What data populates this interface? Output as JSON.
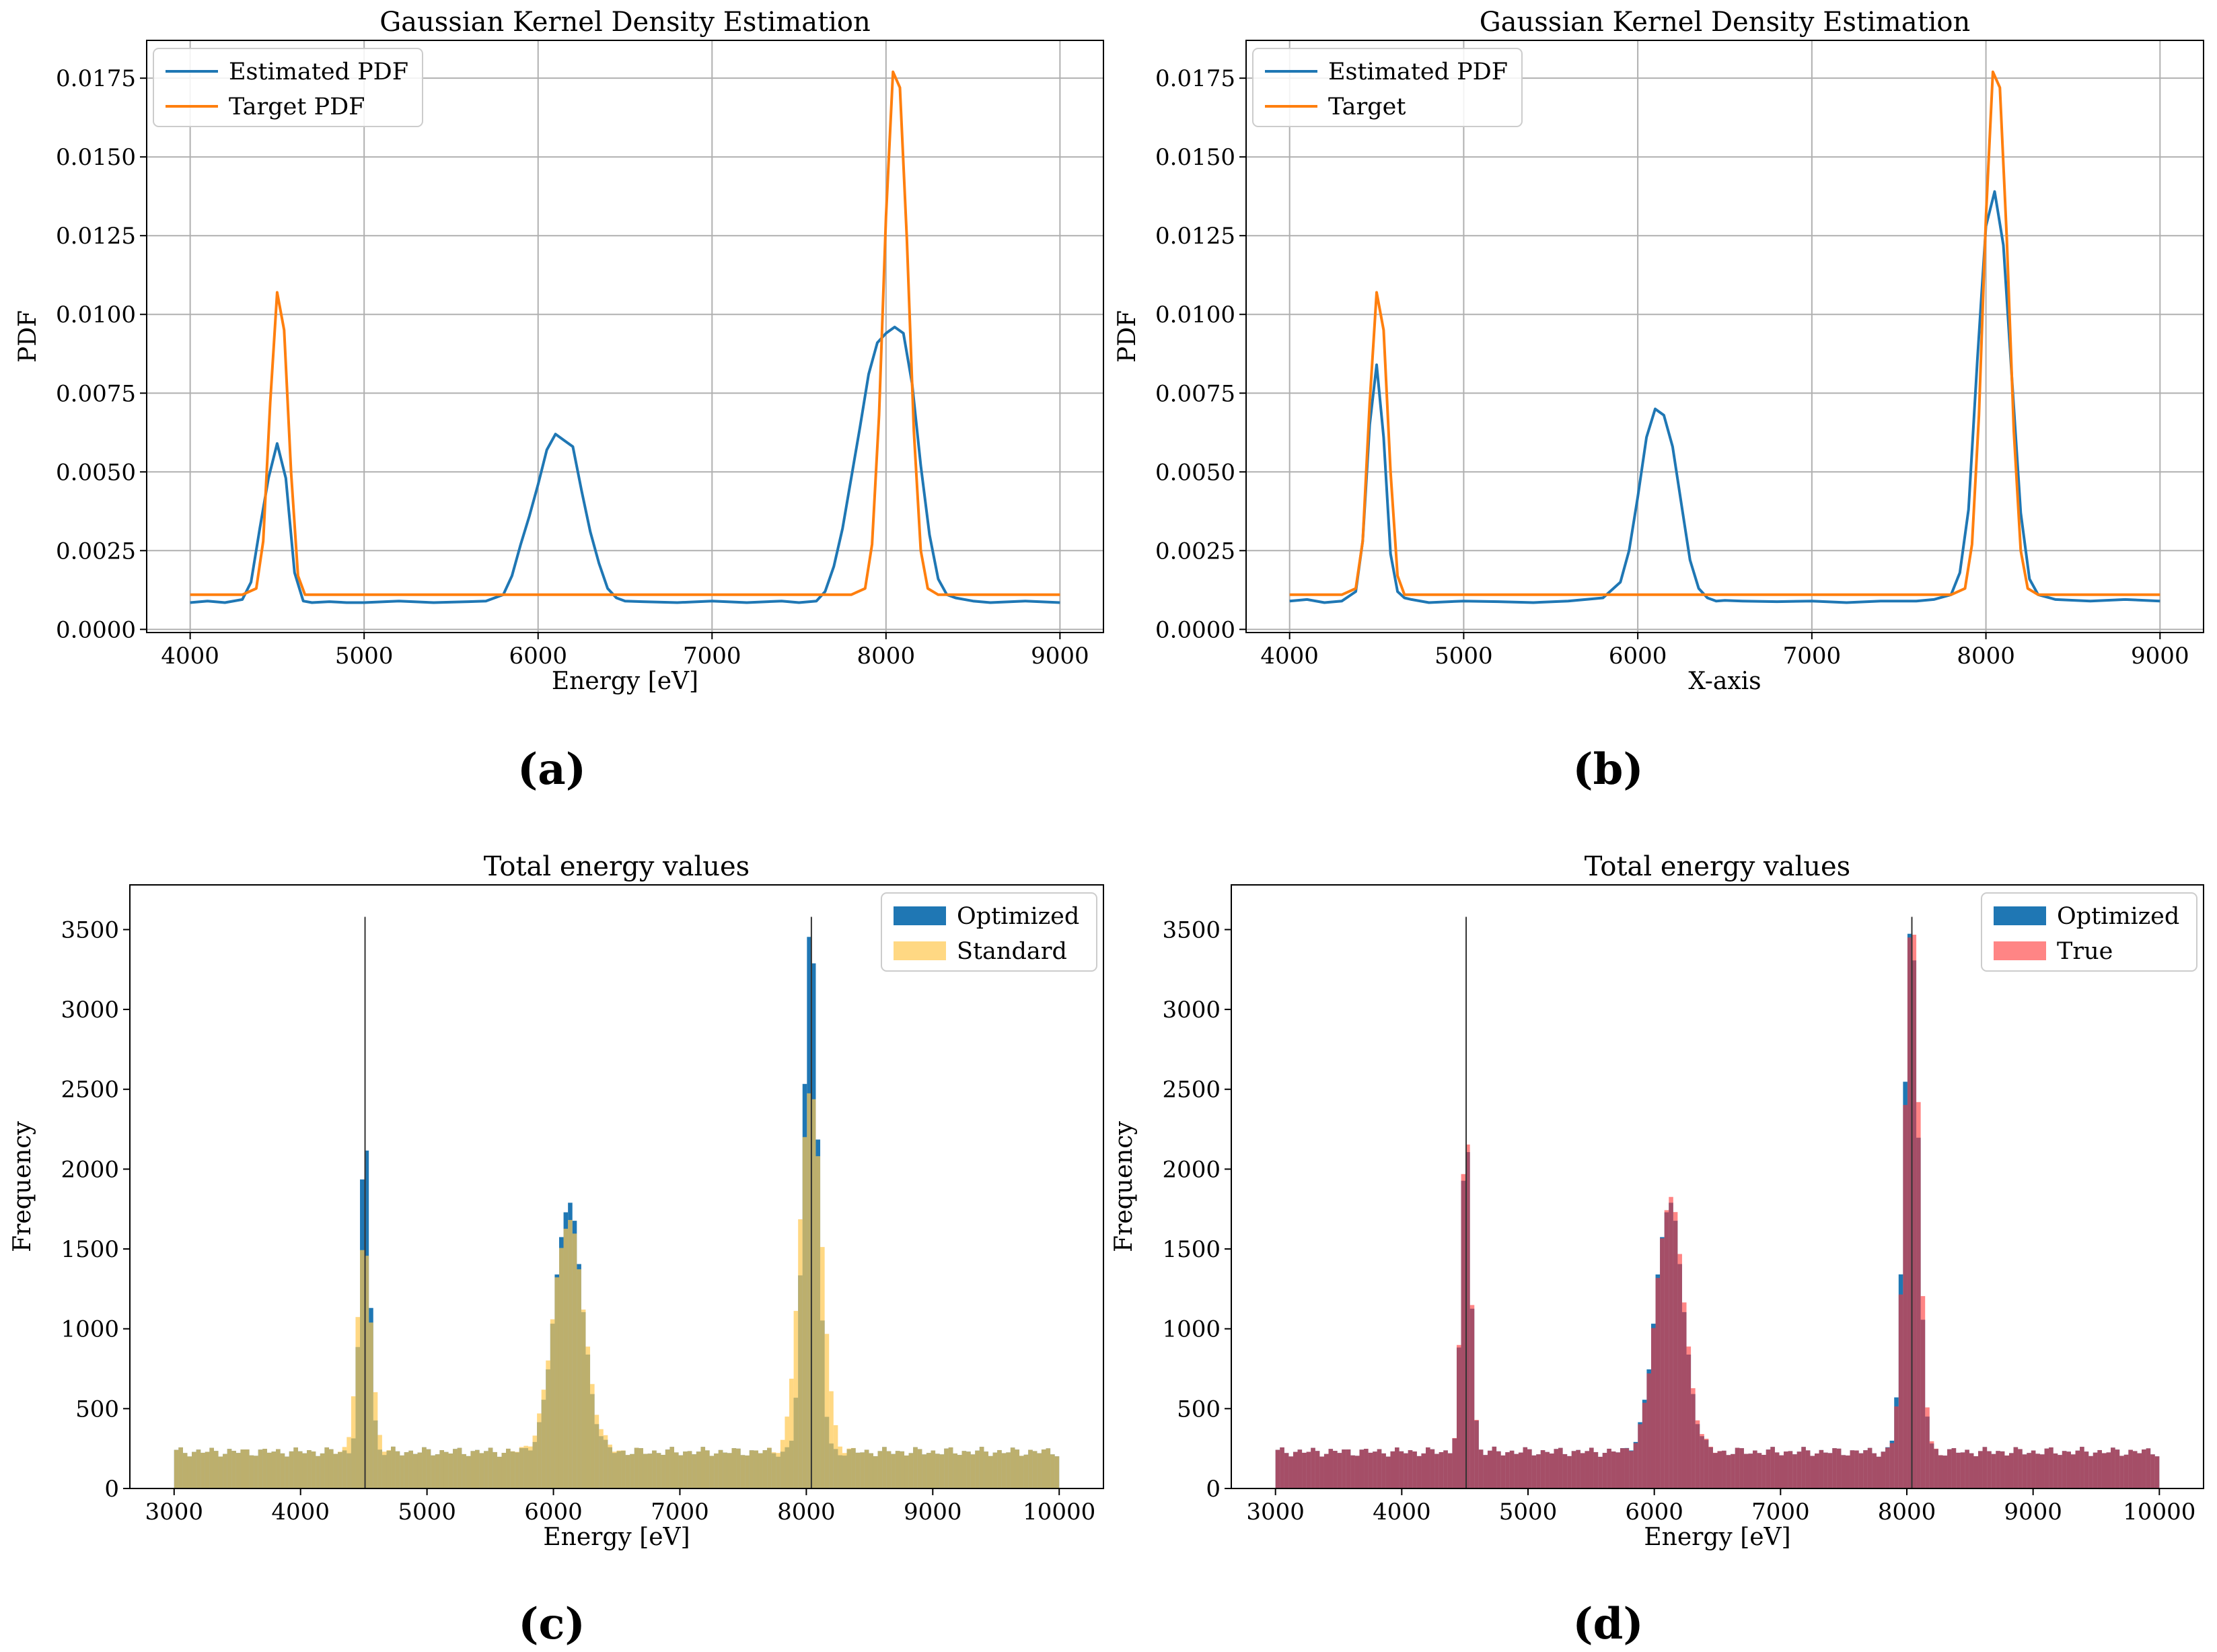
{
  "captions": [
    "(a)",
    "(b)",
    "(c)",
    "(d)"
  ],
  "colors": {
    "estimated": "#1f77b4",
    "target": "#ff7f0e",
    "optimized": "#1f77b4",
    "standard": "#ffc74f",
    "standard_alpha": 0.7,
    "true": "#ff3333",
    "true_alpha": 0.6,
    "vline": "#333333"
  },
  "chart_data": [
    {
      "type": "line",
      "title": "Gaussian Kernel Density Estimation",
      "xlabel": "Energy [eV]",
      "ylabel": "PDF",
      "xlim": [
        3750,
        9250
      ],
      "ylim": [
        -0.0001,
        0.0187
      ],
      "xticks": [
        4000,
        5000,
        6000,
        7000,
        8000,
        9000
      ],
      "xtick_labels": [
        "4000",
        "5000",
        "6000",
        "7000",
        "8000",
        "9000"
      ],
      "yticks": [
        0.0,
        0.0025,
        0.005,
        0.0075,
        0.01,
        0.0125,
        0.015,
        0.0175
      ],
      "ytick_labels": [
        "0.0000",
        "0.0025",
        "0.0050",
        "0.0075",
        "0.0100",
        "0.0125",
        "0.0150",
        "0.0175"
      ],
      "grid": true,
      "legend_position": "upper-left",
      "series": [
        {
          "name": "Estimated PDF",
          "color_key": "estimated",
          "x": [
            4000,
            4100,
            4200,
            4300,
            4350,
            4400,
            4450,
            4500,
            4550,
            4600,
            4650,
            4700,
            4800,
            4900,
            5000,
            5200,
            5400,
            5600,
            5700,
            5800,
            5850,
            5900,
            5950,
            6000,
            6050,
            6100,
            6150,
            6200,
            6250,
            6300,
            6350,
            6400,
            6450,
            6500,
            6600,
            6800,
            7000,
            7200,
            7400,
            7500,
            7600,
            7650,
            7700,
            7750,
            7800,
            7850,
            7900,
            7950,
            8000,
            8050,
            8100,
            8150,
            8200,
            8250,
            8300,
            8350,
            8400,
            8500,
            8600,
            8800,
            9000
          ],
          "y": [
            0.00085,
            0.0009,
            0.00085,
            0.00095,
            0.0015,
            0.0032,
            0.0048,
            0.0059,
            0.0048,
            0.0018,
            0.0009,
            0.00085,
            0.00088,
            0.00085,
            0.00085,
            0.0009,
            0.00085,
            0.00088,
            0.0009,
            0.0011,
            0.0017,
            0.0027,
            0.0036,
            0.0046,
            0.0057,
            0.0062,
            0.006,
            0.0058,
            0.0044,
            0.0031,
            0.0021,
            0.0013,
            0.001,
            0.0009,
            0.00088,
            0.00085,
            0.0009,
            0.00085,
            0.0009,
            0.00085,
            0.0009,
            0.0012,
            0.002,
            0.0032,
            0.0048,
            0.0064,
            0.0081,
            0.0091,
            0.0094,
            0.0096,
            0.0094,
            0.0078,
            0.0052,
            0.003,
            0.0016,
            0.0011,
            0.001,
            0.0009,
            0.00085,
            0.0009,
            0.00085
          ]
        },
        {
          "name": "Target PDF",
          "color_key": "target",
          "x": [
            4000,
            4300,
            4380,
            4420,
            4460,
            4500,
            4540,
            4580,
            4620,
            4660,
            4700,
            5000,
            6000,
            7000,
            7800,
            7880,
            7920,
            7960,
            8000,
            8040,
            8080,
            8120,
            8160,
            8200,
            8240,
            8300,
            8500,
            9000
          ],
          "y": [
            0.0011,
            0.0011,
            0.0013,
            0.0028,
            0.0072,
            0.0107,
            0.0095,
            0.005,
            0.0017,
            0.0011,
            0.0011,
            0.0011,
            0.0011,
            0.0011,
            0.0011,
            0.0013,
            0.0027,
            0.0068,
            0.0131,
            0.0177,
            0.0172,
            0.0124,
            0.0063,
            0.0025,
            0.0013,
            0.0011,
            0.0011,
            0.0011
          ]
        }
      ]
    },
    {
      "type": "line",
      "title": "Gaussian Kernel Density Estimation",
      "xlabel": "X-axis",
      "ylabel": "PDF",
      "xlim": [
        3750,
        9250
      ],
      "ylim": [
        -0.0001,
        0.0187
      ],
      "xticks": [
        4000,
        5000,
        6000,
        7000,
        8000,
        9000
      ],
      "xtick_labels": [
        "4000",
        "5000",
        "6000",
        "7000",
        "8000",
        "9000"
      ],
      "yticks": [
        0.0,
        0.0025,
        0.005,
        0.0075,
        0.01,
        0.0125,
        0.015,
        0.0175
      ],
      "ytick_labels": [
        "0.0000",
        "0.0025",
        "0.0050",
        "0.0075",
        "0.0100",
        "0.0125",
        "0.0150",
        "0.0175"
      ],
      "grid": true,
      "legend_position": "upper-left",
      "series": [
        {
          "name": "Estimated PDF",
          "color_key": "estimated",
          "x": [
            4000,
            4100,
            4200,
            4300,
            4380,
            4420,
            4460,
            4500,
            4540,
            4580,
            4620,
            4660,
            4700,
            4800,
            5000,
            5200,
            5400,
            5600,
            5800,
            5900,
            5950,
            6000,
            6050,
            6100,
            6150,
            6200,
            6250,
            6300,
            6350,
            6400,
            6450,
            6500,
            6600,
            6800,
            7000,
            7200,
            7400,
            7600,
            7700,
            7800,
            7850,
            7900,
            7950,
            8000,
            8050,
            8100,
            8150,
            8200,
            8250,
            8300,
            8400,
            8600,
            8800,
            9000
          ],
          "y": [
            0.0009,
            0.00095,
            0.00085,
            0.0009,
            0.0012,
            0.0028,
            0.0065,
            0.0084,
            0.0061,
            0.0024,
            0.0012,
            0.001,
            0.00095,
            0.00085,
            0.0009,
            0.00088,
            0.00085,
            0.0009,
            0.001,
            0.0015,
            0.0025,
            0.0042,
            0.0061,
            0.007,
            0.0068,
            0.0058,
            0.004,
            0.0022,
            0.0013,
            0.001,
            0.0009,
            0.00092,
            0.0009,
            0.00088,
            0.0009,
            0.00085,
            0.0009,
            0.0009,
            0.00095,
            0.0011,
            0.0018,
            0.0038,
            0.0085,
            0.0128,
            0.0139,
            0.0122,
            0.0079,
            0.0037,
            0.0016,
            0.0011,
            0.00095,
            0.0009,
            0.00095,
            0.0009
          ]
        },
        {
          "name": "Target",
          "color_key": "target",
          "x": [
            4000,
            4300,
            4380,
            4420,
            4460,
            4500,
            4540,
            4580,
            4620,
            4660,
            4700,
            5000,
            6000,
            7000,
            7800,
            7880,
            7920,
            7960,
            8000,
            8040,
            8080,
            8120,
            8160,
            8200,
            8240,
            8300,
            8500,
            9000
          ],
          "y": [
            0.0011,
            0.0011,
            0.0013,
            0.0028,
            0.0072,
            0.0107,
            0.0095,
            0.005,
            0.0017,
            0.0011,
            0.0011,
            0.0011,
            0.0011,
            0.0011,
            0.0011,
            0.0013,
            0.0027,
            0.0068,
            0.0131,
            0.0177,
            0.0172,
            0.0124,
            0.0063,
            0.0025,
            0.0013,
            0.0011,
            0.0011,
            0.0011
          ]
        }
      ]
    },
    {
      "type": "histogram",
      "title": "Total energy values",
      "xlabel": "Energy [eV]",
      "ylabel": "Frequency",
      "xlim": [
        2650,
        10350
      ],
      "ylim": [
        0,
        3780
      ],
      "xticks": [
        3000,
        4000,
        5000,
        6000,
        7000,
        8000,
        9000,
        10000
      ],
      "xtick_labels": [
        "3000",
        "4000",
        "5000",
        "6000",
        "7000",
        "8000",
        "9000",
        "10000"
      ],
      "yticks": [
        0,
        500,
        1000,
        1500,
        2000,
        2500,
        3000,
        3500
      ],
      "ytick_labels": [
        "0",
        "500",
        "1000",
        "1500",
        "2000",
        "2500",
        "3000",
        "3500"
      ],
      "grid": false,
      "legend_position": "upper-right",
      "bin_range": [
        3000,
        10000
      ],
      "bin_width": 35,
      "baseline": 230,
      "vlines": [
        {
          "x": 4510,
          "y_top": 3580
        },
        {
          "x": 8040,
          "y_top": 3580
        }
      ],
      "series": [
        {
          "name": "Optimized",
          "color_key": "optimized",
          "peaks": [
            {
              "center": 4510,
              "sigma": 38,
              "amp": 2000
            },
            {
              "center": 6120,
              "sigma": 110,
              "amp": 1560
            },
            {
              "center": 8035,
              "sigma": 55,
              "amp": 3340
            }
          ]
        },
        {
          "name": "Standard",
          "color_key": "standard",
          "peaks": [
            {
              "center": 4505,
              "sigma": 55,
              "amp": 1300
            },
            {
              "center": 6120,
              "sigma": 120,
              "amp": 1450
            },
            {
              "center": 8035,
              "sigma": 85,
              "amp": 2300
            }
          ]
        }
      ]
    },
    {
      "type": "histogram",
      "title": "Total energy values",
      "xlabel": "Energy [eV]",
      "ylabel": "Frequency",
      "xlim": [
        2650,
        10350
      ],
      "ylim": [
        0,
        3780
      ],
      "xticks": [
        3000,
        4000,
        5000,
        6000,
        7000,
        8000,
        9000,
        10000
      ],
      "xtick_labels": [
        "3000",
        "4000",
        "5000",
        "6000",
        "7000",
        "8000",
        "9000",
        "10000"
      ],
      "yticks": [
        0,
        500,
        1000,
        1500,
        2000,
        2500,
        3000,
        3500
      ],
      "ytick_labels": [
        "0",
        "500",
        "1000",
        "1500",
        "2000",
        "2500",
        "3000",
        "3500"
      ],
      "grid": false,
      "legend_position": "upper-right",
      "bin_range": [
        3000,
        10000
      ],
      "bin_width": 35,
      "baseline": 230,
      "vlines": [
        {
          "x": 4510,
          "y_top": 3580
        },
        {
          "x": 8040,
          "y_top": 3580
        }
      ],
      "series": [
        {
          "name": "Optimized",
          "color_key": "optimized",
          "peaks": [
            {
              "center": 4510,
              "sigma": 38,
              "amp": 1990
            },
            {
              "center": 6120,
              "sigma": 110,
              "amp": 1560
            },
            {
              "center": 8035,
              "sigma": 55,
              "amp": 3360
            }
          ]
        },
        {
          "name": "True",
          "color_key": "true",
          "peaks": [
            {
              "center": 4510,
              "sigma": 38,
              "amp": 2040
            },
            {
              "center": 6125,
              "sigma": 110,
              "amp": 1590
            },
            {
              "center": 8040,
              "sigma": 55,
              "amp": 3420
            }
          ]
        }
      ]
    }
  ]
}
